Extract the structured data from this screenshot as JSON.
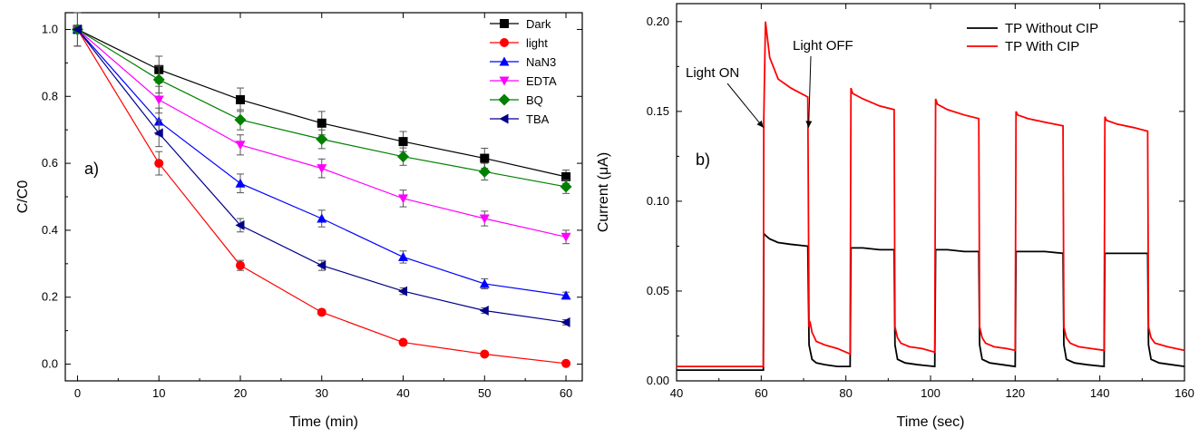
{
  "chart_data": [
    {
      "type": "line",
      "panel_label": "a)",
      "xlabel": "Time (min)",
      "ylabel": "C/C0",
      "xlim": [
        -1.5,
        62
      ],
      "ylim": [
        -0.05,
        1.05
      ],
      "xticks": [
        0,
        10,
        20,
        30,
        40,
        50,
        60
      ],
      "yticks": [
        0.0,
        0.2,
        0.4,
        0.6,
        0.8,
        1.0
      ],
      "ytick_labels": [
        "0.0",
        "0.2",
        "0.4",
        "0.6",
        "0.8",
        "1.0"
      ],
      "legend_position": "top-right",
      "x": [
        0,
        10,
        20,
        30,
        40,
        50,
        60
      ],
      "series": [
        {
          "name": "Dark",
          "color": "#000000",
          "marker": "square",
          "values": [
            1.0,
            0.88,
            0.79,
            0.72,
            0.665,
            0.615,
            0.56
          ],
          "errors": [
            0.05,
            0.04,
            0.035,
            0.035,
            0.03,
            0.03,
            0.02
          ]
        },
        {
          "name": "light",
          "color": "#ff0000",
          "marker": "circle",
          "values": [
            1.0,
            0.6,
            0.295,
            0.155,
            0.065,
            0.03,
            0.002
          ],
          "errors": [
            0.05,
            0.035,
            0.015,
            0.008,
            0.006,
            0.005,
            0.004
          ]
        },
        {
          "name": "NaN3",
          "color": "#0000ff",
          "marker": "triangle-up",
          "values": [
            1.0,
            0.725,
            0.54,
            0.435,
            0.32,
            0.24,
            0.205
          ],
          "errors": [
            0.05,
            0.04,
            0.028,
            0.025,
            0.018,
            0.015,
            0.01
          ]
        },
        {
          "name": "EDTA",
          "color": "#ff00ff",
          "marker": "triangle-down",
          "values": [
            1.0,
            0.79,
            0.655,
            0.585,
            0.495,
            0.435,
            0.38
          ],
          "errors": [
            0.05,
            0.04,
            0.03,
            0.028,
            0.025,
            0.022,
            0.02
          ]
        },
        {
          "name": "BQ",
          "color": "#008000",
          "marker": "diamond",
          "values": [
            1.0,
            0.85,
            0.73,
            0.672,
            0.62,
            0.575,
            0.53
          ],
          "errors": [
            0.05,
            0.04,
            0.03,
            0.028,
            0.026,
            0.025,
            0.02
          ]
        },
        {
          "name": "TBA",
          "color": "#00008b",
          "marker": "triangle-left",
          "values": [
            1.0,
            0.69,
            0.415,
            0.295,
            0.218,
            0.16,
            0.125
          ],
          "errors": [
            0.05,
            0.04,
            0.02,
            0.015,
            0.01,
            0.008,
            0.008
          ]
        }
      ]
    },
    {
      "type": "line",
      "panel_label": "b)",
      "xlabel": "Time (sec)",
      "ylabel": "Current (μA)",
      "xlim": [
        40,
        160
      ],
      "ylim": [
        0.0,
        0.21
      ],
      "xticks": [
        40,
        60,
        80,
        100,
        120,
        140,
        160
      ],
      "yticks": [
        0.0,
        0.05,
        0.1,
        0.15,
        0.2
      ],
      "ytick_labels": [
        "0.00",
        "0.05",
        "0.10",
        "0.15",
        "0.20"
      ],
      "legend_position": "top-right",
      "annotations": [
        {
          "text": "Light ON",
          "arrow_to": [
            60.5,
            0.141
          ]
        },
        {
          "text": "Light OFF",
          "arrow_to": [
            71.2,
            0.141
          ]
        }
      ],
      "series": [
        {
          "name": "TP Without CIP",
          "color": "#000000",
          "x": [
            40,
            60.5,
            60.6,
            61,
            62,
            64,
            67,
            71,
            71.3,
            72,
            73,
            75,
            78,
            81,
            81.2,
            81.6,
            84,
            88,
            91.4,
            91.6,
            92.2,
            94,
            97,
            101,
            101.2,
            101.6,
            104,
            108,
            111.4,
            111.6,
            112.2,
            114,
            117,
            120,
            120.2,
            120.6,
            123,
            127,
            131.3,
            131.5,
            132.1,
            134,
            137,
            141,
            141.2,
            141.6,
            144,
            148,
            151.3,
            151.5,
            152.1,
            154,
            157,
            160
          ],
          "values": [
            0.006,
            0.006,
            0.082,
            0.081,
            0.079,
            0.077,
            0.076,
            0.075,
            0.02,
            0.012,
            0.01,
            0.009,
            0.008,
            0.008,
            0.074,
            0.074,
            0.074,
            0.073,
            0.073,
            0.02,
            0.012,
            0.01,
            0.009,
            0.008,
            0.073,
            0.073,
            0.073,
            0.072,
            0.072,
            0.02,
            0.012,
            0.01,
            0.009,
            0.008,
            0.072,
            0.072,
            0.072,
            0.072,
            0.071,
            0.02,
            0.012,
            0.01,
            0.009,
            0.008,
            0.071,
            0.071,
            0.071,
            0.071,
            0.071,
            0.02,
            0.012,
            0.01,
            0.009,
            0.008
          ]
        },
        {
          "name": "TP With CIP",
          "color": "#ff0000",
          "x": [
            40,
            60.5,
            60.6,
            61,
            62,
            64,
            67,
            71,
            71.3,
            71.6,
            72,
            73,
            75,
            78,
            81,
            81.2,
            81.6,
            84,
            88,
            91.4,
            91.6,
            92.2,
            93,
            95,
            98,
            101,
            101.2,
            101.6,
            104,
            108,
            111.4,
            111.6,
            112.2,
            113,
            115,
            118,
            120,
            120.2,
            120.6,
            123,
            127,
            131.3,
            131.5,
            132.1,
            133,
            135,
            138,
            141,
            141.2,
            141.6,
            144,
            148,
            151.3,
            151.5,
            152.1,
            153,
            156,
            160
          ],
          "values": [
            0.008,
            0.008,
            0.145,
            0.2,
            0.18,
            0.168,
            0.163,
            0.158,
            0.03,
            0.032,
            0.027,
            0.022,
            0.02,
            0.018,
            0.015,
            0.163,
            0.16,
            0.157,
            0.153,
            0.151,
            0.03,
            0.024,
            0.021,
            0.019,
            0.018,
            0.016,
            0.157,
            0.154,
            0.151,
            0.148,
            0.146,
            0.03,
            0.024,
            0.021,
            0.019,
            0.018,
            0.017,
            0.15,
            0.148,
            0.146,
            0.144,
            0.142,
            0.03,
            0.024,
            0.021,
            0.019,
            0.018,
            0.017,
            0.147,
            0.145,
            0.143,
            0.141,
            0.139,
            0.03,
            0.024,
            0.021,
            0.019,
            0.017
          ]
        }
      ]
    }
  ]
}
